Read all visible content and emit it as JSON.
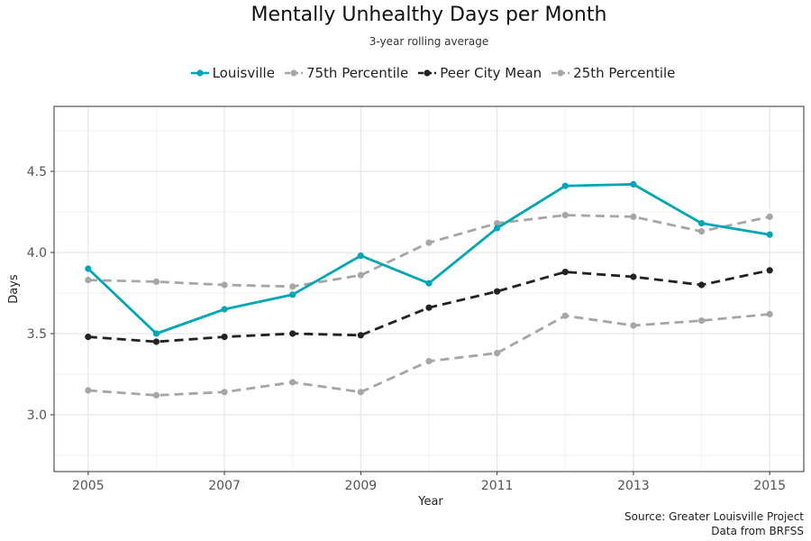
{
  "chart_data": {
    "type": "line",
    "title": "Mentally Unhealthy Days per Month",
    "subtitle": "3-year rolling average",
    "xlabel": "Year",
    "ylabel": "Days",
    "xlim": [
      2004.5,
      2015.5
    ],
    "ylim": [
      2.65,
      4.9
    ],
    "x_ticks": [
      2005,
      2007,
      2009,
      2011,
      2013,
      2015
    ],
    "y_ticks": [
      3.0,
      3.5,
      4.0,
      4.5
    ],
    "y_tick_labels": [
      "3.0",
      "3.5",
      "4.0",
      "4.5"
    ],
    "grid": true,
    "legend_position": "top",
    "x": [
      2005,
      2006,
      2007,
      2008,
      2009,
      2010,
      2011,
      2012,
      2013,
      2014,
      2015
    ],
    "series": [
      {
        "name": "Louisville",
        "color": "#00a6b4",
        "dash": "solid",
        "values": [
          3.9,
          3.5,
          3.65,
          3.74,
          3.98,
          3.81,
          4.15,
          4.41,
          4.42,
          4.18,
          4.11
        ]
      },
      {
        "name": "75th Percentile",
        "color": "#a6a6a6",
        "dash": "dashed",
        "values": [
          3.83,
          3.82,
          3.8,
          3.79,
          3.86,
          4.06,
          4.18,
          4.23,
          4.22,
          4.13,
          4.22
        ]
      },
      {
        "name": "Peer City Mean",
        "color": "#222222",
        "dash": "dashed",
        "values": [
          3.48,
          3.45,
          3.48,
          3.5,
          3.49,
          3.66,
          3.76,
          3.88,
          3.85,
          3.8,
          3.89
        ]
      },
      {
        "name": "25th Percentile",
        "color": "#a6a6a6",
        "dash": "dashed",
        "values": [
          3.15,
          3.12,
          3.14,
          3.2,
          3.14,
          3.33,
          3.38,
          3.61,
          3.55,
          3.58,
          3.62
        ]
      }
    ]
  },
  "caption": {
    "line1": "Source: Greater Louisville Project",
    "line2": "Data from BRFSS"
  }
}
